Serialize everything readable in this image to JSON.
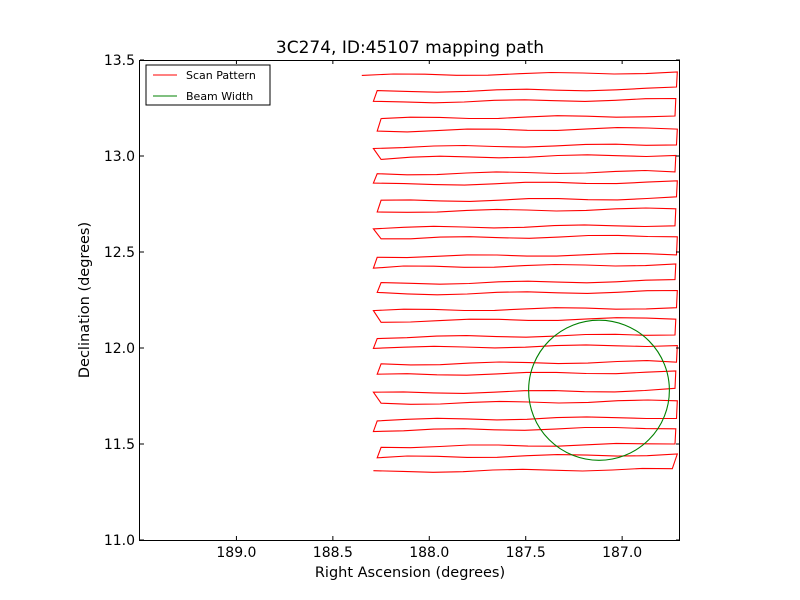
{
  "chart_data": {
    "type": "line",
    "title": "3C274, ID:45107 mapping path",
    "xlabel": "Right Ascension (degrees)",
    "ylabel": "Declination (degrees)",
    "xlim": [
      189.5,
      186.7
    ],
    "ylim": [
      11.0,
      13.5
    ],
    "x_inverted": true,
    "xticks": [
      189.0,
      188.5,
      188.0,
      187.5,
      187.0
    ],
    "xtick_labels": [
      "189.0",
      "188.5",
      "188.0",
      "187.5",
      "187.0"
    ],
    "yticks": [
      11.0,
      11.5,
      12.0,
      12.5,
      13.0,
      13.5
    ],
    "ytick_labels": [
      "11.0",
      "11.5",
      "12.0",
      "12.5",
      "13.0",
      "13.5"
    ],
    "grid": false,
    "legend_position": "top-left",
    "series": [
      {
        "name": "Scan Pattern",
        "color": "#ff0000",
        "scan_rows": {
          "dec": [
            13.42,
            13.35,
            13.28,
            13.21,
            13.13,
            13.06,
            12.99,
            12.92,
            12.85,
            12.78,
            12.71,
            12.64,
            12.57,
            12.49,
            12.42,
            12.35,
            12.28,
            12.21,
            12.14,
            12.07,
            12.0,
            11.93,
            11.86,
            11.78,
            11.71,
            11.64,
            11.57,
            11.5,
            11.43,
            11.37
          ],
          "ra_east": 188.27,
          "ra_west": 186.72,
          "ra_start": 188.35,
          "ra_end": 186.74
        }
      },
      {
        "name": "Beam Width",
        "color": "#008000",
        "circle": {
          "ra_center": 187.12,
          "dec_center": 11.78,
          "radius_deg": 0.365
        }
      }
    ]
  }
}
